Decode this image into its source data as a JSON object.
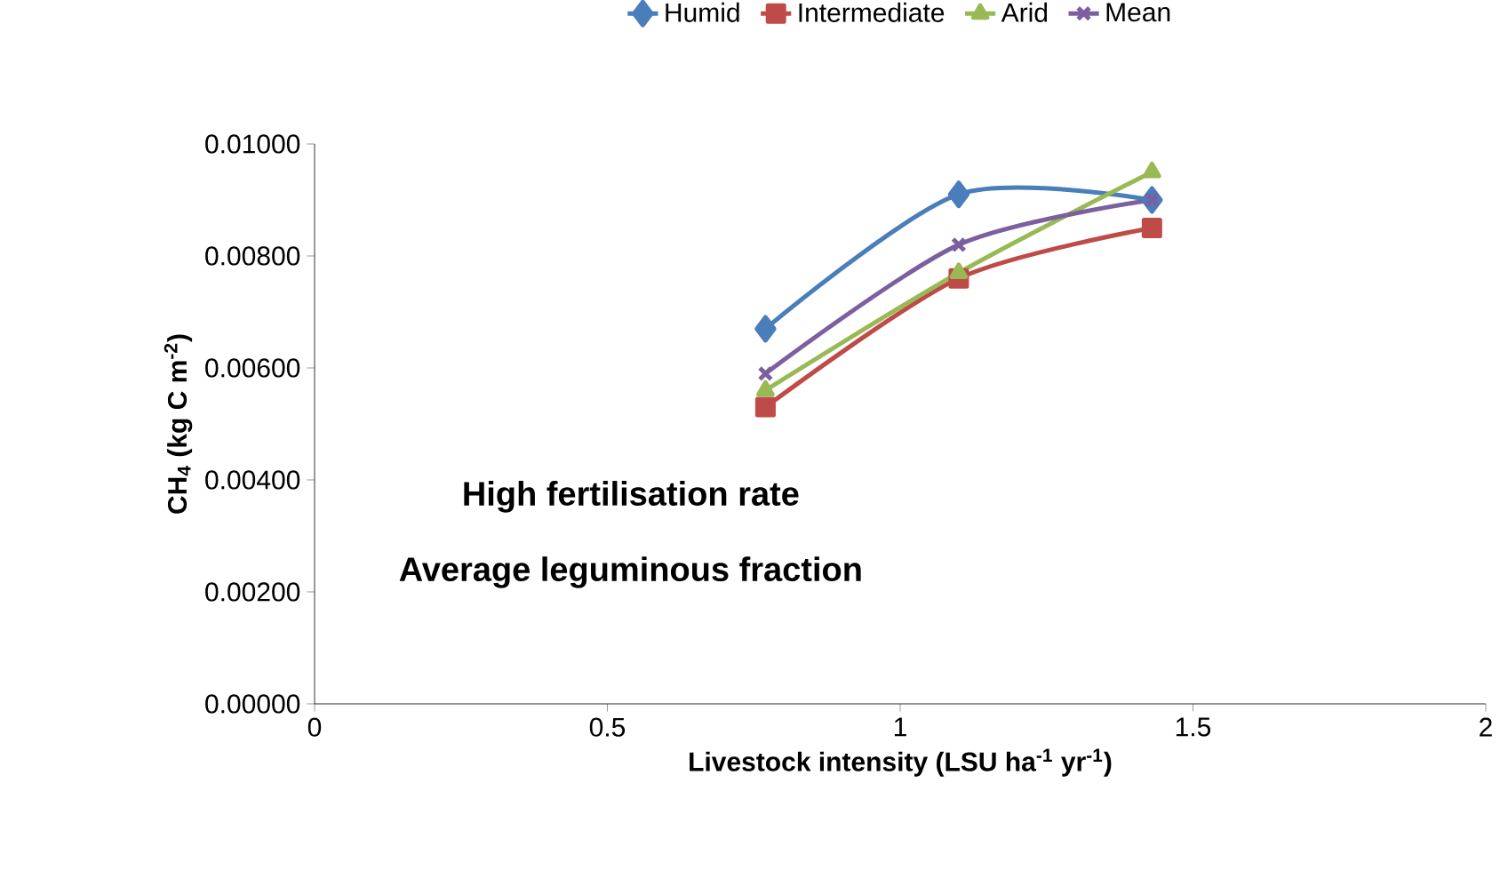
{
  "chart_data": {
    "type": "line",
    "xlabel": "Livestock intensity (LSU ha$^{-1}$ yr$^{-1}$)",
    "ylabel": "CH$_{4}$ (kg C m$^{-2}$)",
    "annotations": [
      "High fertilisation rate",
      "Average leguminous fraction"
    ],
    "x": [
      0.77,
      1.1,
      1.43
    ],
    "series": [
      {
        "name": "Humid",
        "color": "#4a7ebb",
        "marker": "diamond",
        "values": [
          0.0067,
          0.0091,
          0.009
        ]
      },
      {
        "name": "Intermediate",
        "color": "#be4b48",
        "marker": "square",
        "values": [
          0.0053,
          0.0076,
          0.0085
        ]
      },
      {
        "name": "Arid",
        "color": "#98b954",
        "marker": "triangle",
        "values": [
          0.0056,
          0.0077,
          0.0095
        ]
      },
      {
        "name": "Mean",
        "color": "#7d5fa0",
        "marker": "cross",
        "values": [
          0.0059,
          0.0082,
          0.009
        ]
      }
    ],
    "xlim": [
      0,
      2
    ],
    "xticks": [
      0,
      0.5,
      1,
      1.5,
      2
    ],
    "ylim": [
      0,
      0.01
    ],
    "yticks": [
      {
        "value": 0,
        "label": "0.00000"
      },
      {
        "value": 0.002,
        "label": "0.00200"
      },
      {
        "value": 0.004,
        "label": "0.00400"
      },
      {
        "value": 0.006,
        "label": "0.00600"
      },
      {
        "value": 0.008,
        "label": "0.00800"
      },
      {
        "value": 0.01,
        "label": "0.01000"
      }
    ],
    "legend": "top",
    "grid": false,
    "line_style": "solid"
  }
}
